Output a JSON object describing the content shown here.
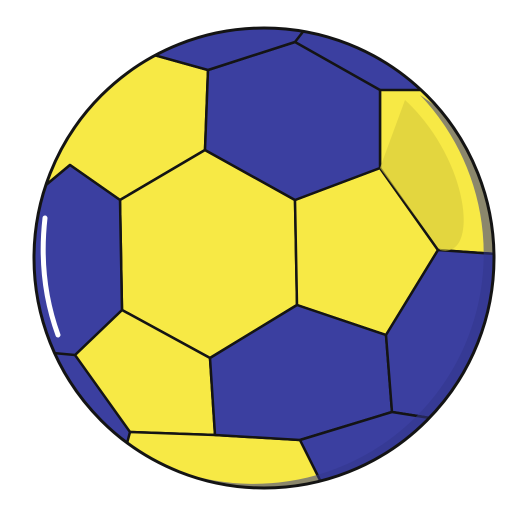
{
  "image": {
    "subject": "ball-icon",
    "colors": {
      "background": "#ffffff",
      "blue": "#3b3fa0",
      "blue_shade": "#33368c",
      "yellow": "#f7e945",
      "yellow_shade": "#d9cc3c",
      "outline": "#141414",
      "highlight": "#ffffff"
    }
  }
}
